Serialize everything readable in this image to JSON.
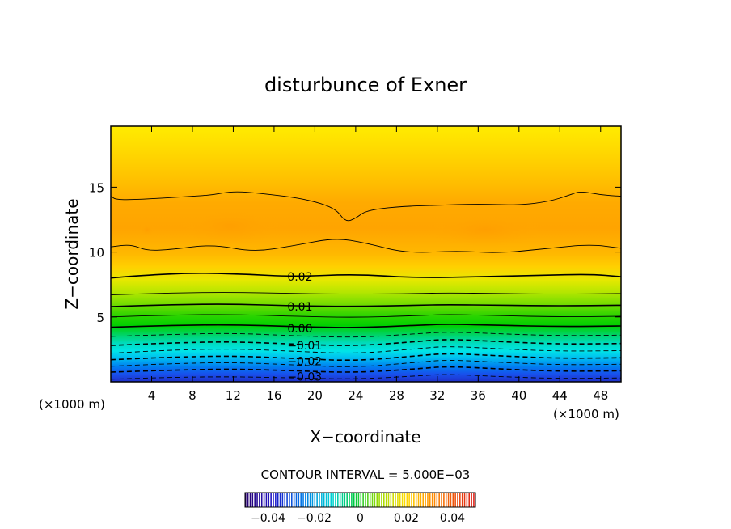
{
  "chart_data": {
    "type": "contour",
    "title": "disturbunce of Exner",
    "xlabel": "X−coordinate",
    "ylabel": "Z−coordinate",
    "x_unit": "(×1000 m)",
    "z_unit": "(×1000 m)",
    "xlim": [
      0,
      50
    ],
    "ylim": [
      0,
      19.7
    ],
    "x_ticks": [
      4,
      8,
      12,
      16,
      20,
      24,
      28,
      32,
      36,
      40,
      44,
      48
    ],
    "y_ticks": [
      5,
      10,
      15
    ],
    "contour_interval_text": "CONTOUR INTERVAL = 5.000E−03",
    "contour_labels": [
      {
        "text": "0.02",
        "x": 17.3,
        "z": 8.1
      },
      {
        "text": "0.01",
        "x": 17.3,
        "z": 5.8
      },
      {
        "text": "0.00",
        "x": 17.3,
        "z": 4.1
      },
      {
        "text": "−0.01",
        "x": 17.3,
        "z": 2.8
      },
      {
        "text": "−0.02",
        "x": 17.3,
        "z": 1.6
      },
      {
        "text": "−0.03",
        "x": 17.3,
        "z": 0.4
      }
    ],
    "contours": [
      {
        "value": -0.035,
        "dashed": true,
        "points": [
          [
            0,
            0.2
          ],
          [
            6,
            0.35
          ],
          [
            12,
            0.4
          ],
          [
            18,
            0.3
          ],
          [
            24,
            0.2
          ],
          [
            30,
            0.45
          ],
          [
            33,
            0.6
          ],
          [
            38,
            0.4
          ],
          [
            44,
            0.25
          ],
          [
            50,
            0.3
          ]
        ]
      },
      {
        "value": -0.03,
        "dashed": true,
        "points": [
          [
            0,
            0.75
          ],
          [
            6,
            0.9
          ],
          [
            12,
            1.0
          ],
          [
            18,
            0.85
          ],
          [
            24,
            0.7
          ],
          [
            30,
            1.0
          ],
          [
            33,
            1.2
          ],
          [
            38,
            1.0
          ],
          [
            44,
            0.8
          ],
          [
            50,
            0.85
          ]
        ]
      },
      {
        "value": -0.025,
        "dashed": true,
        "points": [
          [
            0,
            1.2
          ],
          [
            6,
            1.4
          ],
          [
            12,
            1.5
          ],
          [
            18,
            1.3
          ],
          [
            24,
            1.1
          ],
          [
            30,
            1.5
          ],
          [
            33,
            1.7
          ],
          [
            38,
            1.5
          ],
          [
            44,
            1.3
          ],
          [
            50,
            1.35
          ]
        ]
      },
      {
        "value": -0.02,
        "dashed": true,
        "points": [
          [
            0,
            1.7
          ],
          [
            6,
            1.9
          ],
          [
            12,
            2.0
          ],
          [
            18,
            1.8
          ],
          [
            24,
            1.6
          ],
          [
            30,
            2.0
          ],
          [
            33,
            2.2
          ],
          [
            38,
            2.0
          ],
          [
            44,
            1.8
          ],
          [
            50,
            1.85
          ]
        ]
      },
      {
        "value": -0.015,
        "dashed": true,
        "points": [
          [
            0,
            2.2
          ],
          [
            6,
            2.45
          ],
          [
            12,
            2.55
          ],
          [
            18,
            2.35
          ],
          [
            24,
            2.15
          ],
          [
            30,
            2.55
          ],
          [
            33,
            2.75
          ],
          [
            38,
            2.55
          ],
          [
            44,
            2.35
          ],
          [
            50,
            2.4
          ]
        ]
      },
      {
        "value": -0.01,
        "dashed": true,
        "points": [
          [
            0,
            2.8
          ],
          [
            6,
            3.0
          ],
          [
            12,
            3.1
          ],
          [
            18,
            2.9
          ],
          [
            24,
            2.75
          ],
          [
            30,
            3.1
          ],
          [
            33,
            3.3
          ],
          [
            38,
            3.1
          ],
          [
            44,
            2.9
          ],
          [
            50,
            2.95
          ]
        ]
      },
      {
        "value": -0.005,
        "dashed": true,
        "points": [
          [
            0,
            3.5
          ],
          [
            6,
            3.65
          ],
          [
            12,
            3.75
          ],
          [
            18,
            3.55
          ],
          [
            24,
            3.4
          ],
          [
            30,
            3.7
          ],
          [
            33,
            3.85
          ],
          [
            38,
            3.7
          ],
          [
            44,
            3.55
          ],
          [
            50,
            3.6
          ]
        ]
      },
      {
        "value": 0.0,
        "dashed": false,
        "points": [
          [
            0,
            4.2
          ],
          [
            6,
            4.35
          ],
          [
            12,
            4.4
          ],
          [
            18,
            4.25
          ],
          [
            24,
            4.15
          ],
          [
            30,
            4.35
          ],
          [
            33,
            4.45
          ],
          [
            38,
            4.35
          ],
          [
            44,
            4.25
          ],
          [
            50,
            4.3
          ]
        ]
      },
      {
        "value": 0.005,
        "dashed": false,
        "points": [
          [
            0,
            5.0
          ],
          [
            6,
            5.15
          ],
          [
            12,
            5.2
          ],
          [
            18,
            5.05
          ],
          [
            24,
            4.95
          ],
          [
            30,
            5.1
          ],
          [
            33,
            5.2
          ],
          [
            38,
            5.1
          ],
          [
            44,
            5.0
          ],
          [
            50,
            5.05
          ]
        ]
      },
      {
        "value": 0.01,
        "dashed": false,
        "points": [
          [
            0,
            5.8
          ],
          [
            6,
            5.95
          ],
          [
            12,
            6.0
          ],
          [
            18,
            5.85
          ],
          [
            24,
            5.8
          ],
          [
            30,
            5.9
          ],
          [
            33,
            5.95
          ],
          [
            38,
            5.9
          ],
          [
            44,
            5.85
          ],
          [
            50,
            5.9
          ]
        ]
      },
      {
        "value": 0.015,
        "dashed": false,
        "points": [
          [
            0,
            6.7
          ],
          [
            6,
            6.85
          ],
          [
            12,
            6.9
          ],
          [
            18,
            6.8
          ],
          [
            24,
            6.75
          ],
          [
            30,
            6.8
          ],
          [
            33,
            6.85
          ],
          [
            38,
            6.8
          ],
          [
            44,
            6.75
          ],
          [
            50,
            6.8
          ]
        ]
      },
      {
        "value": 0.02,
        "dashed": false,
        "points": [
          [
            0,
            8.0
          ],
          [
            3,
            8.2
          ],
          [
            8,
            8.4
          ],
          [
            13,
            8.3
          ],
          [
            18,
            8.1
          ],
          [
            24,
            8.3
          ],
          [
            30,
            8.0
          ],
          [
            36,
            8.1
          ],
          [
            42,
            8.2
          ],
          [
            47,
            8.3
          ],
          [
            50,
            8.1
          ]
        ]
      },
      {
        "value": 0.025,
        "dashed": false,
        "points": [
          [
            0,
            10.4
          ],
          [
            2,
            10.6
          ],
          [
            3.5,
            10.1
          ],
          [
            6,
            10.2
          ],
          [
            10,
            10.6
          ],
          [
            14,
            10.0
          ],
          [
            18,
            10.5
          ],
          [
            22,
            11.1
          ],
          [
            25,
            10.7
          ],
          [
            29,
            9.9
          ],
          [
            34,
            10.1
          ],
          [
            38,
            9.9
          ],
          [
            43,
            10.3
          ],
          [
            47,
            10.6
          ],
          [
            50,
            10.3
          ]
        ]
      },
      {
        "value": 0.025,
        "dashed": false,
        "points": [
          [
            0,
            14.3
          ],
          [
            0.6,
            14.0
          ],
          [
            4,
            14.1
          ],
          [
            8,
            14.3
          ],
          [
            10,
            14.4
          ],
          [
            12,
            14.7
          ],
          [
            15,
            14.5
          ],
          [
            19,
            14.1
          ],
          [
            22,
            13.4
          ],
          [
            23,
            12.3
          ],
          [
            24,
            12.6
          ],
          [
            25,
            13.2
          ],
          [
            28,
            13.5
          ],
          [
            32,
            13.6
          ],
          [
            36,
            13.7
          ],
          [
            40,
            13.6
          ],
          [
            43,
            13.9
          ],
          [
            45,
            14.4
          ],
          [
            46,
            14.7
          ],
          [
            48,
            14.4
          ],
          [
            50,
            14.3
          ]
        ]
      }
    ],
    "colorbar": {
      "vmin": -0.05,
      "vmax": 0.05,
      "tick_labels": [
        "−0.04",
        "−0.02",
        "0",
        "0.02",
        "0.04"
      ],
      "tick_values": [
        -0.04,
        -0.02,
        0,
        0.02,
        0.04
      ]
    }
  }
}
